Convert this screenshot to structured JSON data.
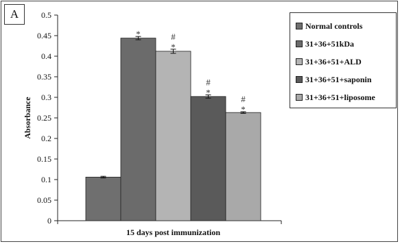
{
  "panel_label": "A",
  "chart_data": {
    "type": "bar",
    "title": "",
    "xlabel": "15 days post immunization",
    "ylabel": "Absorbance",
    "ylim": [
      0,
      0.5
    ],
    "yticks": [
      "0",
      "0.05",
      "0.1",
      "0.15",
      "0.2",
      "0.25",
      "0.3",
      "0.35",
      "0.4",
      "0.45",
      "0.5"
    ],
    "grid": false,
    "legend_position": "top-right",
    "series": [
      {
        "name": "Normal controls",
        "value": 0.106,
        "error": 0.002,
        "color": "#6f6f6f",
        "annotation": []
      },
      {
        "name": "31+36+51kDa",
        "value": 0.444,
        "error": 0.004,
        "color": "#6b6b6b",
        "annotation": [
          "*"
        ]
      },
      {
        "name": "31+36+51+ALD",
        "value": 0.412,
        "error": 0.005,
        "color": "#b4b4b4",
        "annotation": [
          "*",
          "#"
        ]
      },
      {
        "name": "31+36+51+saponin",
        "value": 0.302,
        "error": 0.004,
        "color": "#5a5a5a",
        "annotation": [
          "*",
          "#"
        ]
      },
      {
        "name": "31+36+51+liposome",
        "value": 0.263,
        "error": 0.002,
        "color": "#a9a9a9",
        "annotation": [
          "*",
          "#"
        ]
      }
    ]
  }
}
